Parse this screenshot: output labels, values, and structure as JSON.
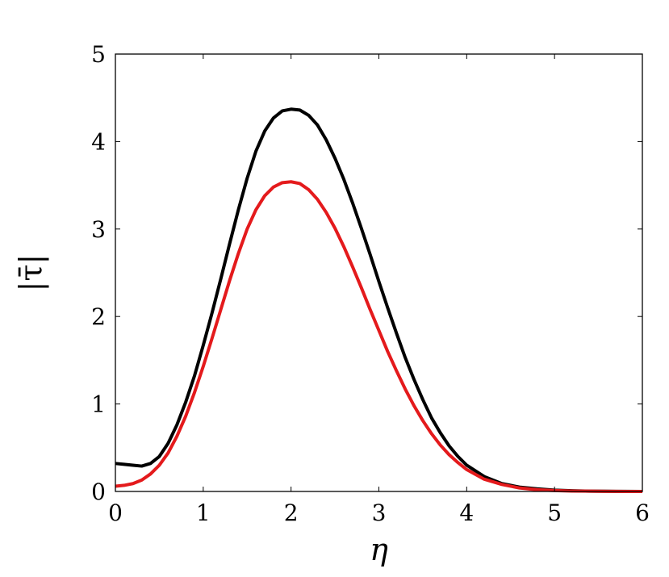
{
  "chart_data": {
    "type": "line",
    "title": "",
    "xlabel": "η",
    "ylabel": "|τ̄|",
    "xlim": [
      0,
      6
    ],
    "ylim": [
      0,
      5
    ],
    "xticks": [
      "0",
      "1",
      "2",
      "3",
      "4",
      "5",
      "6"
    ],
    "yticks": [
      "0",
      "1",
      "2",
      "3",
      "4",
      "5"
    ],
    "grid": false,
    "legend": "none",
    "series": [
      {
        "color": "#000000",
        "x": [
          0,
          0.1,
          0.2,
          0.3,
          0.4,
          0.5,
          0.6,
          0.7,
          0.8,
          0.9,
          1.0,
          1.1,
          1.2,
          1.3,
          1.4,
          1.5,
          1.6,
          1.7,
          1.8,
          1.9,
          2.0,
          2.1,
          2.2,
          2.3,
          2.4,
          2.5,
          2.6,
          2.7,
          2.8,
          2.9,
          3.0,
          3.1,
          3.2,
          3.3,
          3.4,
          3.5,
          3.6,
          3.7,
          3.8,
          3.9,
          4.0,
          4.2,
          4.4,
          4.6,
          4.8,
          5.0,
          5.2,
          5.4,
          5.6,
          5.8,
          6.0
        ],
        "y": [
          0.32,
          0.31,
          0.3,
          0.29,
          0.32,
          0.4,
          0.55,
          0.76,
          1.02,
          1.32,
          1.67,
          2.04,
          2.43,
          2.83,
          3.22,
          3.58,
          3.89,
          4.12,
          4.27,
          4.35,
          4.37,
          4.36,
          4.3,
          4.19,
          4.02,
          3.81,
          3.57,
          3.3,
          3.01,
          2.71,
          2.4,
          2.1,
          1.81,
          1.53,
          1.28,
          1.05,
          0.84,
          0.67,
          0.52,
          0.4,
          0.3,
          0.17,
          0.09,
          0.05,
          0.03,
          0.015,
          0.008,
          0.004,
          0.002,
          0.001,
          0.0
        ]
      },
      {
        "color": "#e41a1c",
        "x": [
          0,
          0.1,
          0.2,
          0.3,
          0.4,
          0.5,
          0.6,
          0.7,
          0.8,
          0.9,
          1.0,
          1.1,
          1.2,
          1.3,
          1.4,
          1.5,
          1.6,
          1.7,
          1.8,
          1.9,
          2.0,
          2.1,
          2.2,
          2.3,
          2.4,
          2.5,
          2.6,
          2.7,
          2.8,
          2.9,
          3.0,
          3.1,
          3.2,
          3.3,
          3.4,
          3.5,
          3.6,
          3.7,
          3.8,
          3.9,
          4.0,
          4.2,
          4.4,
          4.6,
          4.8,
          5.0,
          5.2,
          5.4,
          5.6,
          5.8,
          6.0
        ],
        "y": [
          0.06,
          0.07,
          0.09,
          0.13,
          0.2,
          0.3,
          0.44,
          0.63,
          0.86,
          1.13,
          1.43,
          1.75,
          2.08,
          2.41,
          2.72,
          3.0,
          3.22,
          3.38,
          3.48,
          3.53,
          3.54,
          3.52,
          3.45,
          3.34,
          3.19,
          3.01,
          2.8,
          2.57,
          2.33,
          2.08,
          1.84,
          1.6,
          1.38,
          1.17,
          0.98,
          0.81,
          0.66,
          0.53,
          0.42,
          0.33,
          0.25,
          0.14,
          0.08,
          0.04,
          0.02,
          0.01,
          0.005,
          0.003,
          0.001,
          0.0005,
          0.0
        ]
      }
    ]
  }
}
